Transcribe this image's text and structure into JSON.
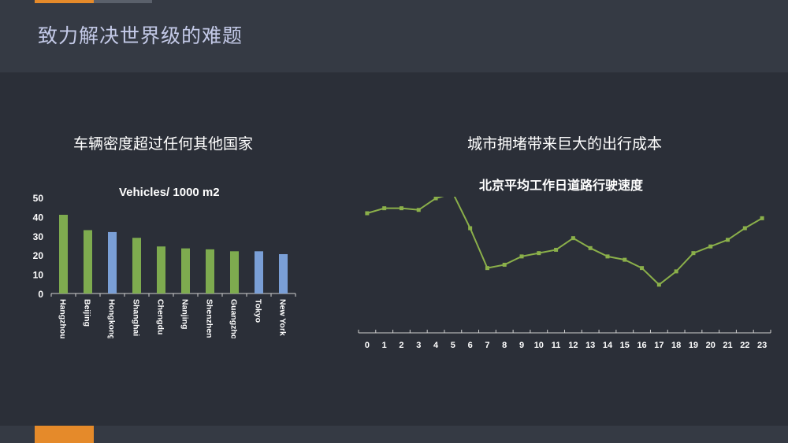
{
  "page": {
    "title": "致力解决世界级的难题"
  },
  "colors": {
    "accent": "#e58a2a",
    "green": "#7eab4f",
    "blue": "#7a9fd6",
    "line": "#8bb04a"
  },
  "chart_data": [
    {
      "type": "bar",
      "title": "车辆密度超过任何其他国家",
      "subtitle": "Vehicles/ 1000 m2",
      "categories": [
        "Hangzhou",
        "Beijing",
        "Hongkong",
        "Shanghai",
        "Chengdu",
        "Nanjing",
        "Shenzhen",
        "Guangzhou",
        "Tokyo",
        "New York"
      ],
      "values": [
        41,
        33,
        32,
        29,
        24.5,
        23.5,
        23,
        22,
        22,
        20.5
      ],
      "colors": [
        "#7eab4f",
        "#7eab4f",
        "#7a9fd6",
        "#7eab4f",
        "#7eab4f",
        "#7eab4f",
        "#7eab4f",
        "#7eab4f",
        "#7a9fd6",
        "#7a9fd6"
      ],
      "yticks": [
        "0",
        "10",
        "20",
        "30",
        "40",
        "50"
      ],
      "ylim": [
        0,
        50
      ]
    },
    {
      "type": "line",
      "title": "城市拥堵带来巨大的出行成本",
      "subtitle": "北京平均工作日道路行驶速度",
      "x": [
        "0",
        "1",
        "2",
        "3",
        "4",
        "5",
        "6",
        "7",
        "8",
        "9",
        "10",
        "11",
        "12",
        "13",
        "14",
        "15",
        "16",
        "17",
        "18",
        "19",
        "20",
        "21",
        "22",
        "23"
      ],
      "values": [
        36,
        37.5,
        37.5,
        37,
        40.5,
        42,
        31.5,
        19.5,
        20.5,
        23,
        24,
        25,
        28.5,
        25.5,
        23,
        22,
        19.5,
        14.5,
        18.5,
        24,
        26,
        28,
        31.5,
        34.5
      ],
      "ylim": [
        0,
        45
      ]
    }
  ]
}
